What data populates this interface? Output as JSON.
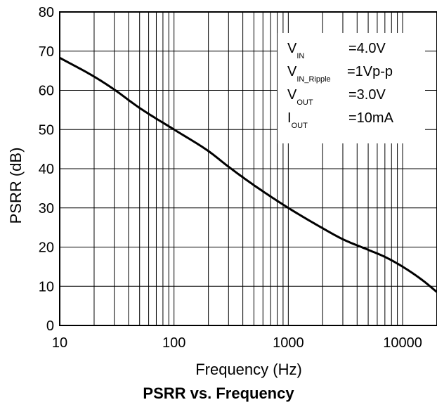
{
  "chart_data": {
    "type": "line",
    "title": "PSRR vs. Frequency",
    "xlabel": "Frequency (Hz)",
    "ylabel": "PSRR (dB)",
    "xscale": "log",
    "xlim": [
      10,
      20000
    ],
    "ylim": [
      0,
      80
    ],
    "xticks": [
      10,
      100,
      1000,
      10000
    ],
    "xtick_labels": [
      "10",
      "100",
      "1000",
      "10000"
    ],
    "yticks": [
      0,
      10,
      20,
      30,
      40,
      50,
      60,
      70,
      80
    ],
    "ytick_labels": [
      "0",
      "10",
      "20",
      "30",
      "40",
      "50",
      "60",
      "70",
      "80"
    ],
    "grid": true,
    "color": "#000000",
    "series": [
      {
        "x": [
          10,
          20,
          30,
          50,
          100,
          200,
          300,
          500,
          1000,
          2000,
          3000,
          5000,
          7000,
          10000,
          15000,
          20000
        ],
        "values": [
          68.3,
          63.5,
          60.2,
          55.5,
          50.0,
          44.5,
          40.5,
          35.8,
          30.0,
          24.8,
          22.0,
          19.3,
          17.5,
          15.0,
          11.5,
          8.5
        ]
      }
    ],
    "annotation": {
      "position": "top-right",
      "rows": [
        {
          "label": "V",
          "sub": "IN",
          "value": "=4.0V"
        },
        {
          "label": "V",
          "sub": "IN_Ripple",
          "value": "=1Vp-p"
        },
        {
          "label": "V",
          "sub": "OUT",
          "value": "=3.0V"
        },
        {
          "label": "I",
          "sub": "OUT",
          "value": "=10mA"
        }
      ]
    }
  }
}
